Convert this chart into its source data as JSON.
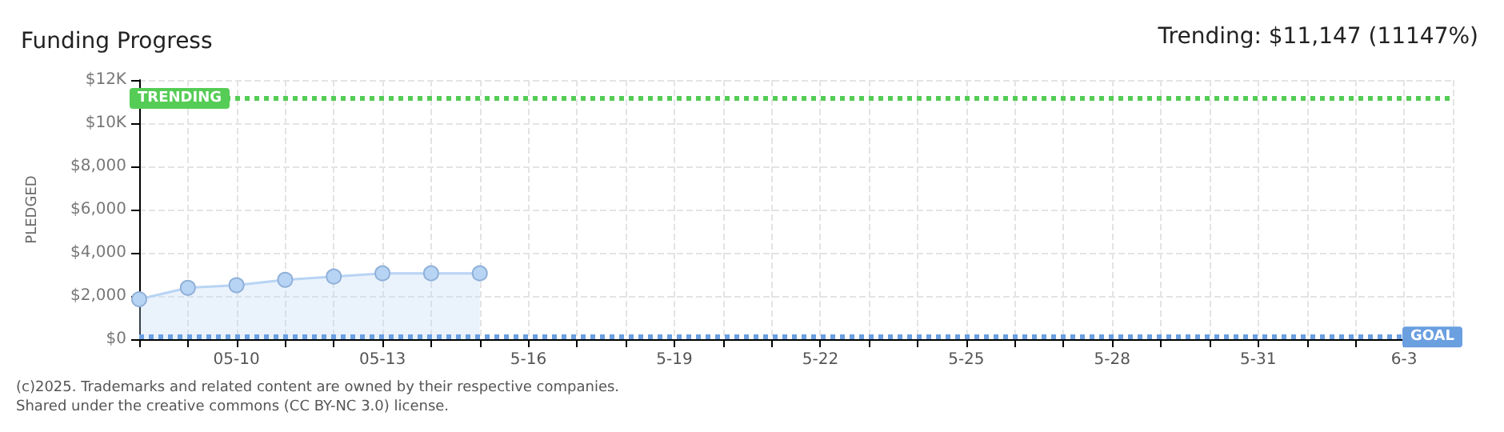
{
  "chart_data": {
    "type": "area",
    "title": "Funding Progress",
    "ylabel": "PLEDGED",
    "annotations": [
      "Trending: $11,147 (11147%)",
      "(c)2025. Trademarks and related content are owned by their respective companies.",
      "Shared under the creative commons (CC BY-NC 3.0) license."
    ],
    "x": [
      "--05-08",
      "--05-09",
      "--05-10",
      "--05-11",
      "--05-12",
      "--05-13",
      "--05-14",
      "--05-15"
    ],
    "series": [
      {
        "color": "#b8d4f4",
        "values": [
          1850,
          2380,
          2500,
          2750,
          2900,
          3050,
          3050,
          3050
        ]
      }
    ],
    "xlim": [
      "--05-08",
      "--06-04"
    ],
    "xticks": [
      {
        "value": "--05-08",
        "label": null
      },
      {
        "value": "--05-09",
        "label": null
      },
      {
        "value": "--05-10",
        "label": "05-10"
      },
      {
        "value": "--05-11",
        "label": null
      },
      {
        "value": "--05-12",
        "label": null
      },
      {
        "value": "--05-13",
        "label": "05-13"
      },
      {
        "value": "--05-14",
        "label": null
      },
      {
        "value": "--05-15",
        "label": null
      },
      {
        "value": "--05-16",
        "label": "5-16"
      },
      {
        "value": "--05-17",
        "label": null
      },
      {
        "value": "--05-18",
        "label": null
      },
      {
        "value": "--05-19",
        "label": "5-19"
      },
      {
        "value": "--05-20",
        "label": null
      },
      {
        "value": "--05-21",
        "label": null
      },
      {
        "value": "--05-22",
        "label": "5-22"
      },
      {
        "value": "--05-23",
        "label": null
      },
      {
        "value": "--05-24",
        "label": null
      },
      {
        "value": "--05-25",
        "label": "5-25"
      },
      {
        "value": "--05-26",
        "label": null
      },
      {
        "value": "--05-27",
        "label": null
      },
      {
        "value": "--05-28",
        "label": "5-28"
      },
      {
        "value": "--05-29",
        "label": null
      },
      {
        "value": "--05-30",
        "label": null
      },
      {
        "value": "--05-31",
        "label": "5-31"
      },
      {
        "value": "--06-01",
        "label": null
      },
      {
        "value": "--06-02",
        "label": null
      },
      {
        "value": "--06-03",
        "label": "6-3"
      },
      {
        "value": "--06-04",
        "label": null
      }
    ],
    "ylim": [
      0,
      12000
    ],
    "yticks": [
      {
        "value": 0,
        "label": "$0"
      },
      {
        "value": 2000,
        "label": "$2,000"
      },
      {
        "value": 4000,
        "label": "$4,000"
      },
      {
        "value": 6000,
        "label": "$6,000"
      },
      {
        "value": 8000,
        "label": "$8,000"
      },
      {
        "value": 10000,
        "label": "$10K"
      },
      {
        "value": 12000,
        "label": "$12K"
      }
    ],
    "ref_lines": [
      {
        "axis": "y",
        "value": 11147,
        "label": "TRENDING",
        "color": "#55cc55",
        "line_style": "dotted"
      },
      {
        "axis": "y",
        "value": 100,
        "label": "GOAL",
        "color": "#6a9fe0",
        "line_style": "dotted"
      }
    ],
    "grid": true,
    "marker": "circle",
    "line_style": "solid"
  }
}
